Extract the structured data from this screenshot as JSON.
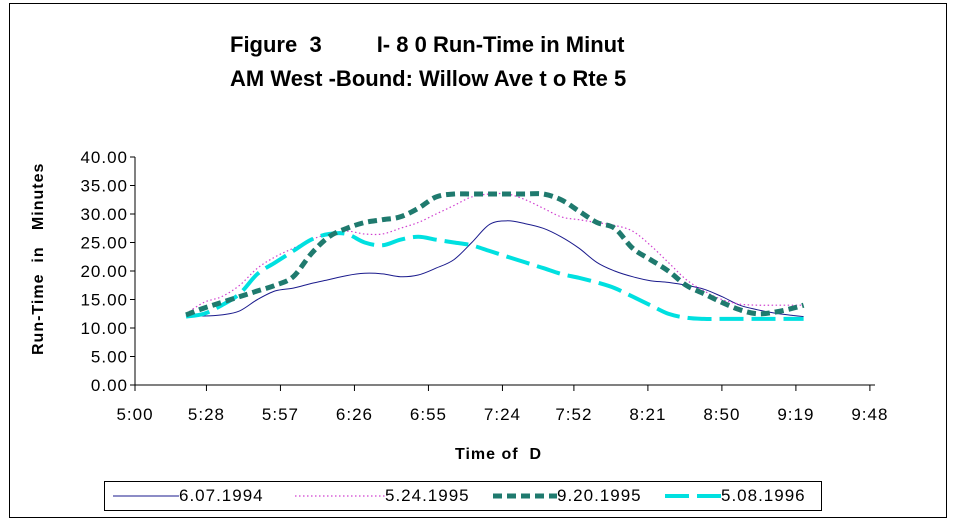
{
  "chart_data": {
    "type": "line",
    "title_line1": "Figure  3         I- 8 0 Run-Time in Minut",
    "title_line2": "AM West -Bound: Willow Ave t o Rte 5",
    "xlabel": "Time of  D",
    "ylabel": "Run-Time  in   Minutes",
    "x_ticks": [
      "5:00",
      "5:28",
      "5:57",
      "6:26",
      "6:55",
      "7:24",
      "7:52",
      "8:21",
      "8:50",
      "9:19",
      "9:48"
    ],
    "y_ticks": [
      "0.00",
      "5.00",
      "10.00",
      "15.00",
      "20.00",
      "25.00",
      "30.00",
      "35.00",
      "40.00"
    ],
    "ylim": [
      0,
      40
    ],
    "xlim_minutes_after_5am": [
      0,
      290
    ],
    "grid": false,
    "legend_position": "bottom",
    "series": [
      {
        "name": "6.07.1994",
        "color": "#1a1a8c",
        "style": "solid-thin",
        "x": [
          "5:20",
          "5:27",
          "5:34",
          "5:41",
          "5:48",
          "5:55",
          "6:02",
          "6:09",
          "6:16",
          "6:23",
          "6:30",
          "6:37",
          "6:44",
          "6:51",
          "6:58",
          "7:05",
          "7:12",
          "7:19",
          "7:26",
          "7:33",
          "7:40",
          "7:47",
          "7:54",
          "8:01",
          "8:08",
          "8:15",
          "8:22",
          "8:29",
          "8:36",
          "8:43",
          "8:50",
          "8:57",
          "9:04",
          "9:11",
          "9:18",
          "9:22"
        ],
        "values": [
          12.2,
          12.1,
          12.3,
          13.0,
          15.0,
          16.5,
          17.0,
          17.8,
          18.5,
          19.2,
          19.6,
          19.5,
          19.0,
          19.3,
          20.5,
          22.0,
          25.0,
          28.2,
          28.8,
          28.3,
          27.5,
          26.0,
          24.0,
          21.5,
          20.0,
          19.0,
          18.3,
          18.0,
          17.5,
          16.8,
          15.5,
          14.0,
          13.2,
          12.6,
          12.2,
          12.0
        ]
      },
      {
        "name": "5.24.1995",
        "color": "#d040d0",
        "style": "dotted",
        "x": [
          "5:20",
          "5:27",
          "5:34",
          "5:41",
          "5:48",
          "5:55",
          "6:02",
          "6:09",
          "6:16",
          "6:23",
          "6:30",
          "6:37",
          "6:44",
          "6:51",
          "6:58",
          "7:05",
          "7:12",
          "7:19",
          "7:26",
          "7:33",
          "7:40",
          "7:47",
          "7:54",
          "8:01",
          "8:08",
          "8:15",
          "8:22",
          "8:29",
          "8:36",
          "8:43",
          "8:50",
          "8:57",
          "9:04",
          "9:11",
          "9:18",
          "9:22"
        ],
        "values": [
          12.5,
          14.5,
          15.5,
          17.5,
          20.5,
          22.5,
          24.0,
          25.5,
          26.5,
          27.0,
          26.5,
          26.5,
          27.5,
          28.5,
          30.0,
          31.5,
          33.0,
          33.5,
          33.5,
          32.5,
          31.0,
          29.5,
          29.0,
          28.5,
          28.0,
          27.0,
          24.5,
          21.5,
          18.5,
          16.5,
          15.0,
          14.2,
          14.0,
          14.0,
          14.0,
          14.0
        ]
      },
      {
        "name": "9.20.1995",
        "color": "#1f7a6e",
        "style": "thick-dash",
        "x": [
          "5:20",
          "5:27",
          "5:34",
          "5:41",
          "5:48",
          "5:55",
          "6:02",
          "6:09",
          "6:16",
          "6:23",
          "6:30",
          "6:37",
          "6:44",
          "6:51",
          "6:58",
          "7:05",
          "7:12",
          "7:19",
          "7:26",
          "7:33",
          "7:40",
          "7:47",
          "7:54",
          "8:01",
          "8:08",
          "8:15",
          "8:22",
          "8:29",
          "8:36",
          "8:43",
          "8:50",
          "8:57",
          "9:04",
          "9:11",
          "9:18",
          "9:22"
        ],
        "values": [
          12.3,
          13.5,
          14.5,
          15.5,
          16.5,
          17.5,
          19.0,
          23.0,
          26.0,
          27.5,
          28.5,
          29.0,
          29.5,
          31.0,
          33.0,
          33.5,
          33.5,
          33.5,
          33.5,
          33.5,
          33.5,
          32.5,
          30.5,
          28.5,
          27.5,
          24.0,
          22.0,
          20.0,
          17.5,
          16.0,
          14.5,
          13.2,
          12.5,
          12.8,
          13.5,
          14.0
        ]
      },
      {
        "name": "5.08.1996",
        "color": "#00e0e0",
        "style": "long-dash",
        "x": [
          "5:20",
          "5:27",
          "5:34",
          "5:41",
          "5:48",
          "5:55",
          "6:02",
          "6:09",
          "6:16",
          "6:23",
          "6:30",
          "6:37",
          "6:44",
          "6:51",
          "6:58",
          "7:05",
          "7:12",
          "7:19",
          "7:26",
          "7:33",
          "7:40",
          "7:47",
          "7:54",
          "8:01",
          "8:08",
          "8:15",
          "8:22",
          "8:29",
          "8:36",
          "8:43",
          "8:50",
          "8:57",
          "9:04",
          "9:11",
          "9:18",
          "9:22"
        ],
        "values": [
          12.0,
          12.5,
          14.0,
          16.0,
          19.5,
          21.5,
          23.5,
          25.5,
          26.5,
          26.5,
          25.0,
          24.5,
          25.5,
          26.0,
          25.5,
          25.0,
          24.5,
          23.5,
          22.5,
          21.5,
          20.5,
          19.5,
          18.8,
          18.0,
          17.0,
          15.5,
          14.0,
          12.5,
          11.8,
          11.6,
          11.6,
          11.6,
          11.6,
          11.6,
          11.6,
          11.6
        ]
      }
    ]
  }
}
